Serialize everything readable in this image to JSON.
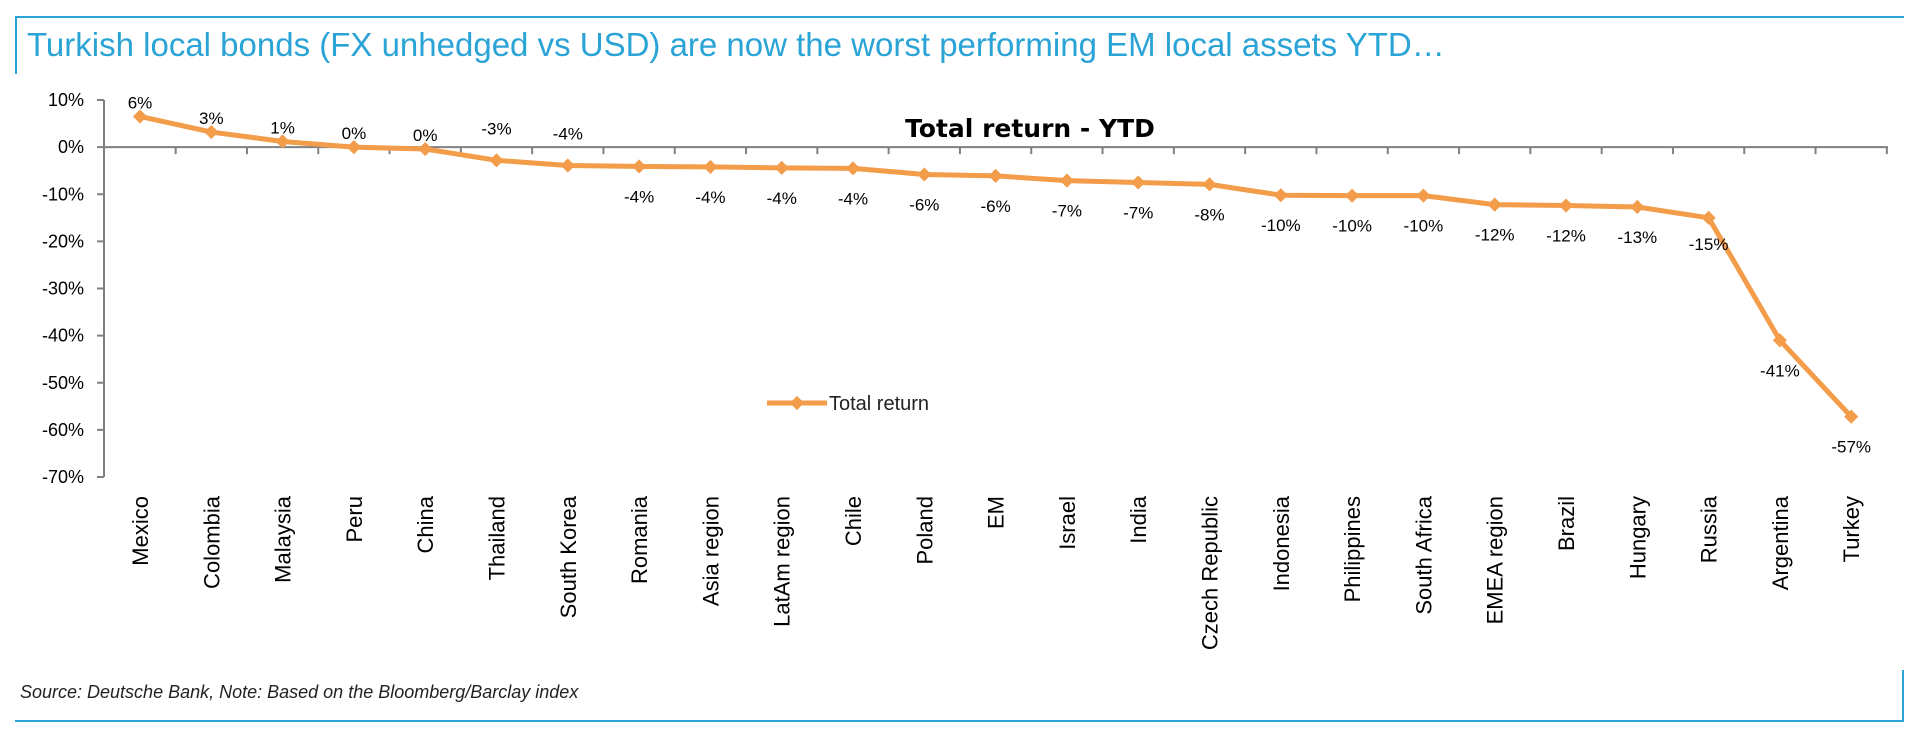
{
  "header": {
    "headline": "Turkish local bonds (FX unhedged vs USD) are now the worst performing EM local assets YTD…"
  },
  "footer": {
    "source": "Source: Deutsche Bank, Note: Based on the Bloomberg/Barclay index"
  },
  "colors": {
    "accent": "#2aa3d6",
    "series": "#f39c4a",
    "axis": "#808080"
  },
  "chart_data": {
    "type": "line",
    "title": "Total return - YTD",
    "xlabel": "",
    "ylabel": "",
    "ylim": [
      -70,
      10
    ],
    "yticks": [
      10,
      0,
      -10,
      -20,
      -30,
      -40,
      -50,
      -60,
      -70
    ],
    "ytick_labels": [
      "10%",
      "0%",
      "-10%",
      "-20%",
      "-30%",
      "-40%",
      "-50%",
      "-60%",
      "-70%"
    ],
    "legend": "center",
    "grid": false,
    "categories": [
      "Mexico",
      "Colombia",
      "Malaysia",
      "Peru",
      "China",
      "Thailand",
      "South Korea",
      "Romania",
      "Asia region",
      "LatAm region",
      "Chile",
      "Poland",
      "EM",
      "Israel",
      "India",
      "Czech Republic",
      "Indonesia",
      "Philippines",
      "South Africa",
      "EMEA region",
      "Brazil",
      "Hungary",
      "Russia",
      "Argentina",
      "Turkey"
    ],
    "series": [
      {
        "name": "Total return",
        "values": [
          6.5,
          3.2,
          1.2,
          0.0,
          -0.4,
          -2.8,
          -3.9,
          -4.1,
          -4.2,
          -4.4,
          -4.5,
          -5.8,
          -6.1,
          -7.1,
          -7.5,
          -7.9,
          -10.2,
          -10.3,
          -10.3,
          -12.2,
          -12.4,
          -12.7,
          -15.0,
          -41.0,
          -57.2
        ],
        "labels": [
          "6%",
          "3%",
          "1%",
          "0%",
          "0%",
          "-3%",
          "-4%",
          "-4%",
          "-4%",
          "-4%",
          "-4%",
          "-6%",
          "-6%",
          "-7%",
          "-7%",
          "-8%",
          "-10%",
          "-10%",
          "-10%",
          "-12%",
          "-12%",
          "-13%",
          "-15%",
          "-41%",
          "-57%"
        ]
      }
    ]
  }
}
